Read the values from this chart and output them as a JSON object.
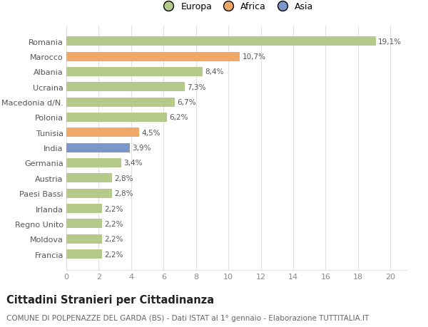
{
  "categories": [
    "Francia",
    "Moldova",
    "Regno Unito",
    "Irlanda",
    "Paesi Bassi",
    "Austria",
    "Germania",
    "India",
    "Tunisia",
    "Polonia",
    "Macedonia d/N.",
    "Ucraina",
    "Albania",
    "Marocco",
    "Romania"
  ],
  "values": [
    2.2,
    2.2,
    2.2,
    2.2,
    2.8,
    2.8,
    3.4,
    3.9,
    4.5,
    6.2,
    6.7,
    7.3,
    8.4,
    10.7,
    19.1
  ],
  "labels": [
    "2,2%",
    "2,2%",
    "2,2%",
    "2,2%",
    "2,8%",
    "2,8%",
    "3,4%",
    "3,9%",
    "4,5%",
    "6,2%",
    "6,7%",
    "7,3%",
    "8,4%",
    "10,7%",
    "19,1%"
  ],
  "colors": [
    "#b5c98a",
    "#b5c98a",
    "#b5c98a",
    "#b5c98a",
    "#b5c98a",
    "#b5c98a",
    "#b5c98a",
    "#7b96c9",
    "#f0a868",
    "#b5c98a",
    "#b5c98a",
    "#b5c98a",
    "#b5c98a",
    "#f0a868",
    "#b5c98a"
  ],
  "legend": [
    {
      "label": "Europa",
      "color": "#b5c98a"
    },
    {
      "label": "Africa",
      "color": "#f0a868"
    },
    {
      "label": "Asia",
      "color": "#7b96c9"
    }
  ],
  "xlim": [
    0,
    21
  ],
  "xticks": [
    0,
    2,
    4,
    6,
    8,
    10,
    12,
    14,
    16,
    18,
    20
  ],
  "title": "Cittadini Stranieri per Cittadinanza",
  "subtitle": "COMUNE DI POLPENAZZE DEL GARDA (BS) - Dati ISTAT al 1° gennaio - Elaborazione TUTTITALIA.IT",
  "bg_color": "#ffffff",
  "grid_color": "#e0e0e0",
  "bar_height": 0.6,
  "label_fontsize": 7.5,
  "ytick_fontsize": 8,
  "xtick_fontsize": 8,
  "title_fontsize": 10.5,
  "subtitle_fontsize": 7.5,
  "legend_fontsize": 9
}
